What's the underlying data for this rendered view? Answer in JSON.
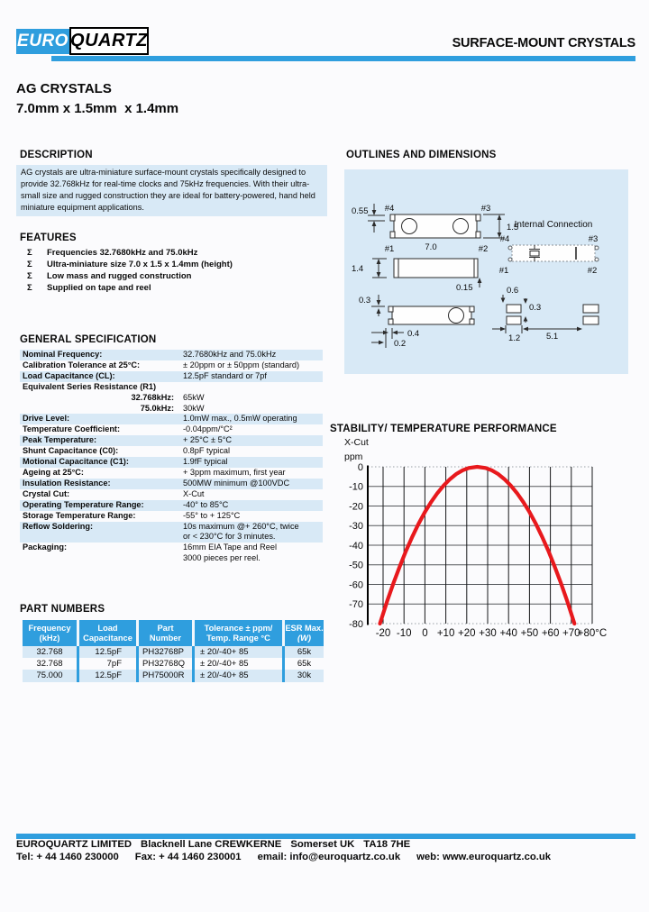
{
  "page": {
    "accent": "#2f9ede",
    "light_blue": "#d8e9f6",
    "background": "#fbfbfd"
  },
  "header": {
    "logo_euro": "EURO",
    "logo_quartz": "QUARTZ",
    "doc_title": "SURFACE-MOUNT CRYSTALS"
  },
  "title": {
    "line1": "AG CRYSTALS",
    "line2": "7.0mm x 1.5mm  x 1.4mm"
  },
  "description": {
    "heading": "DESCRIPTION",
    "text": "AG crystals are ultra-miniature surface-mount crystals specifically designed to provide 32.768kHz for real-time clocks and 75kHz frequencies. With their ultra-small size and rugged construction they are ideal for battery-powered, hand held miniature equipment applications."
  },
  "features": {
    "heading": "FEATURES",
    "bullet": "Σ",
    "items": [
      "Frequencies 32.7680kHz and 75.0kHz",
      "Ultra-miniature size 7.0 x 1.5 x 1.4mm (height)",
      "Low mass and rugged construction",
      "Supplied on tape and reel"
    ]
  },
  "general_specification": {
    "heading": "GENERAL SPECIFICATION",
    "rows": [
      {
        "label": "Nominal Frequency:",
        "value": "32.7680kHz and 75.0kHz"
      },
      {
        "label": "Calibration Tolerance at 25°C:",
        "value": "± 20ppm or ± 50ppm (standard)"
      },
      {
        "label": "Load Capacitance (CL):",
        "value": "12.5pF standard or 7pf"
      },
      {
        "label": "Equivalent Series Resistance (R1)",
        "value": ""
      },
      {
        "label": "32.768kHz:",
        "value": "65kW"
      },
      {
        "label": "75.0kHz:",
        "value": "30kW"
      },
      {
        "label": "Drive Level:",
        "value": "1.0mW max., 0.5mW operating"
      },
      {
        "label": "Temperature Coefficient:",
        "value": "-0.04ppm/°C²"
      },
      {
        "label": "Peak Temperature:",
        "value": "+ 25°C ± 5°C"
      },
      {
        "label": "Shunt Capacitance (C0):",
        "value": "0.8pF typical"
      },
      {
        "label": "Motional Capacitance (C1):",
        "value": "1.9fF typical"
      },
      {
        "label": "Ageing at 25°C:",
        "value": "+ 3ppm maximum, first year"
      },
      {
        "label": "Insulation Resistance:",
        "value": "500MW minimum @100VDC"
      },
      {
        "label": "Crystal Cut:",
        "value": "X-Cut"
      },
      {
        "label": "Operating Temperature Range:",
        "value": "-40° to 85°C"
      },
      {
        "label": "Storage Temperature Range:",
        "value": "-55° to + 125°C"
      },
      {
        "label": "Reflow Soldering:",
        "value": "10s maximum @+ 260°C, twice",
        "value2": "or < 230°C for 3 minutes."
      },
      {
        "label": "Packaging:",
        "value": "16mm EIA Tape and Reel",
        "value2": "3000 pieces per reel."
      }
    ]
  },
  "outlines": {
    "heading": "OUTLINES AND DIMENSIONS",
    "top_view": {
      "pin4": "#4",
      "pin3": "#3",
      "pin1": "#1",
      "pin2": "#2",
      "dim_pad": "0.55",
      "dim_length": "7.0",
      "dim_width": "1.5"
    },
    "side_view": {
      "dim_height": "1.4",
      "dim_standoff": "0.15"
    },
    "bottom_view": {
      "dim_pad": "0.3",
      "dim_a": "0.4",
      "dim_b": "0.2"
    },
    "internal": {
      "title": "Internal Connection",
      "pin4": "#4",
      "pin3": "#3",
      "pin1": "#1",
      "pin2": "#2"
    },
    "land_pattern": {
      "dim_pad_w": "0.6",
      "dim_gap": "0.3",
      "dim_pitch": "1.2",
      "dim_span": "5.1"
    }
  },
  "stability": {
    "heading": "STABILITY/ TEMPERATURE PERFORMANCE"
  },
  "chart_data": {
    "type": "line",
    "title": "STABILITY/ TEMPERATURE PERFORMANCE",
    "cut_label": "X-Cut",
    "ylabel": "ppm",
    "xlabel": "°C",
    "x_ticks": [
      "-20",
      "-10",
      "0",
      "+10",
      "+20",
      "+30",
      "+40",
      "+50",
      "+60",
      "+70",
      "+80°C"
    ],
    "x_tick_values": [
      -20,
      -10,
      0,
      10,
      20,
      30,
      40,
      50,
      60,
      70,
      80
    ],
    "y_ticks": [
      "0",
      "-10",
      "-20",
      "-30",
      "-40",
      "-50",
      "-60",
      "-70",
      "-80"
    ],
    "y_tick_values": [
      0,
      -10,
      -20,
      -30,
      -40,
      -50,
      -60,
      -70,
      -80
    ],
    "ylim": [
      -80,
      0
    ],
    "xlim": [
      -27,
      80
    ],
    "grid": true,
    "legend": "none",
    "series": [
      {
        "name": "X-Cut frequency deviation vs temperature",
        "color": "#e8191d",
        "model": "parabola: ppm = -0.037 x (T - 25)^2, peak 0ppm at +25°C",
        "points": [
          [
            -21.5,
            -80
          ],
          [
            -18,
            -68.4
          ],
          [
            -15,
            -59.2
          ],
          [
            -12,
            -50.7
          ],
          [
            -9,
            -42.8
          ],
          [
            -6,
            -35.6
          ],
          [
            -3,
            -29.0
          ],
          [
            0,
            -23.1
          ],
          [
            3,
            -17.9
          ],
          [
            6,
            -13.4
          ],
          [
            9,
            -9.5
          ],
          [
            12,
            -6.3
          ],
          [
            15,
            -3.7
          ],
          [
            18,
            -1.8
          ],
          [
            21,
            -0.6
          ],
          [
            25,
            0
          ],
          [
            29,
            -0.6
          ],
          [
            32,
            -1.8
          ],
          [
            35,
            -3.7
          ],
          [
            38,
            -6.3
          ],
          [
            41,
            -9.5
          ],
          [
            44,
            -13.4
          ],
          [
            47,
            -17.9
          ],
          [
            50,
            -23.1
          ],
          [
            53,
            -29.0
          ],
          [
            56,
            -35.6
          ],
          [
            59,
            -42.8
          ],
          [
            62,
            -50.7
          ],
          [
            65,
            -59.2
          ],
          [
            68,
            -68.4
          ],
          [
            71.5,
            -80
          ]
        ]
      }
    ]
  },
  "part_numbers": {
    "heading": "PART NUMBERS",
    "columns": [
      {
        "line1": "Frequency",
        "line2": "(kHz)"
      },
      {
        "line1": "Load",
        "line2": "Capacitance"
      },
      {
        "line1": "Part",
        "line2": "Number"
      },
      {
        "line1": "Tolerance ± ppm/",
        "line2": "Temp. Range °C"
      },
      {
        "line1": "ESR Max.",
        "line2": "(W)"
      }
    ],
    "rows": [
      {
        "frequency": "32.768",
        "load": "12.5pF",
        "part": "PH32768P",
        "tolerance": "± 20/-40+ 85",
        "esr": "65k"
      },
      {
        "frequency": "32.768",
        "load": "7pF",
        "part": "PH32768Q",
        "tolerance": "± 20/-40+ 85",
        "esr": "65k"
      },
      {
        "frequency": "75.000",
        "load": "12.5pF",
        "part": "PH75000R",
        "tolerance": "± 20/-40+ 85",
        "esr": "30k"
      }
    ]
  },
  "footer": {
    "line1_segments": [
      "EUROQUARTZ LIMITED",
      "Blacknell Lane CREWKERNE",
      "Somerset UK",
      "TA18 7HE"
    ],
    "line2_segments": [
      "Tel: + 44 1460 230000",
      "Fax: + 44 1460 230001",
      "email: info@euroquartz.co.uk",
      "web: www.euroquartz.co.uk"
    ]
  }
}
